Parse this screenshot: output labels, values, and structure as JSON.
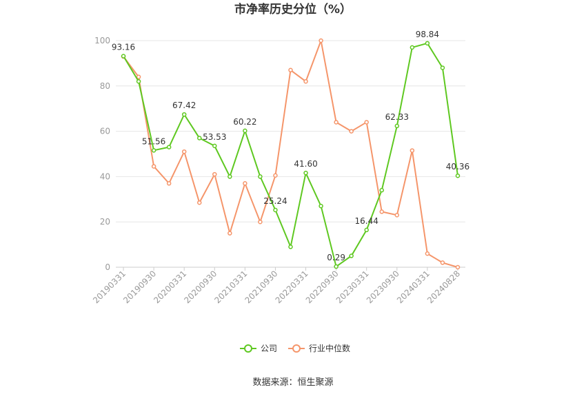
{
  "chart_data": {
    "type": "line",
    "title": "市净率历史分位（%）",
    "source": "数据来源：恒生聚源",
    "ylim": [
      0,
      100
    ],
    "y_ticks": [
      0,
      20,
      40,
      60,
      80,
      100
    ],
    "x": [
      "20190331",
      "20190630",
      "20190930",
      "20191231",
      "20200331",
      "20200630",
      "20200930",
      "20201231",
      "20210331",
      "20210630",
      "20210930",
      "20211231",
      "20220331",
      "20220630",
      "20220930",
      "20221231",
      "20230331",
      "20230630",
      "20230930",
      "20231231",
      "20240331",
      "20240630",
      "20240828"
    ],
    "x_tick_labels": [
      "20190331",
      "20190930",
      "20200331",
      "20200930",
      "20210331",
      "20210930",
      "20220331",
      "20220930",
      "20230331",
      "20230930",
      "20240331",
      "20240828"
    ],
    "x_tick_indices": [
      0,
      2,
      4,
      6,
      8,
      10,
      12,
      14,
      16,
      18,
      20,
      22
    ],
    "grid": true,
    "legend_position": "bottom",
    "series": [
      {
        "name": "公司",
        "color": "#5ec820",
        "values": [
          93.16,
          82,
          51.56,
          53,
          67.42,
          57,
          53.53,
          40,
          60.22,
          40,
          25.24,
          9,
          41.6,
          27,
          0.29,
          5,
          16.44,
          34,
          62.33,
          97,
          98.84,
          88,
          40.36
        ],
        "labels": {
          "0": "93.16",
          "2": "51.56",
          "4": "67.42",
          "6": "53.53",
          "8": "60.22",
          "10": "25.24",
          "12": "41.60",
          "14": "0.29",
          "16": "16.44",
          "18": "62.33",
          "20": "98.84",
          "22": "40.36"
        }
      },
      {
        "name": "行业中位数",
        "color": "#f5956a",
        "values": [
          93,
          84,
          44.5,
          37,
          51,
          28.5,
          41,
          15,
          37,
          20,
          40.5,
          87,
          82,
          100,
          64,
          60,
          64,
          24.5,
          23,
          51.5,
          6,
          2,
          0
        ]
      }
    ]
  }
}
